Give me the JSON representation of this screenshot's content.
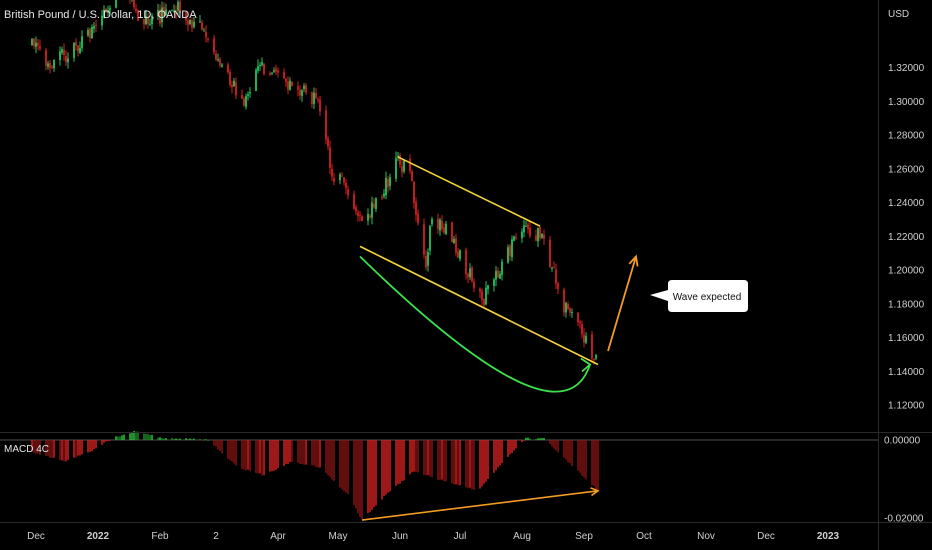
{
  "title": "British Pound / U.S. Dollar, 1D, OANDA",
  "currency": "USD",
  "callout": "Wave expected",
  "colors": {
    "background": "#000000",
    "up": "#22c55e",
    "down": "#d61f1f",
    "channel": "#f5d33a",
    "arc": "#3be14a",
    "arrow": "#f39c22",
    "axis_text": "#d0d0d0",
    "separator": "#2a2a2a"
  },
  "chart_data": [
    {
      "type": "candlestick",
      "title": "British Pound / U.S. Dollar, 1D, OANDA",
      "ylabel": "USD",
      "ylim": [
        1.104,
        1.36
      ],
      "y_ticks": [
        "1.32000",
        "1.30000",
        "1.28000",
        "1.26000",
        "1.24000",
        "1.22000",
        "1.20000",
        "1.18000",
        "1.16000",
        "1.14000",
        "1.12000"
      ],
      "x_ticks": [
        "Dec",
        "2022",
        "Feb",
        "2",
        "Apr",
        "May",
        "Jun",
        "Jul",
        "Aug",
        "Sep",
        "Oct",
        "Nov",
        "Dec",
        "2023"
      ],
      "trend": [
        {
          "date": "2021-11-29",
          "close": 1.333
        },
        {
          "date": "2021-12-08",
          "close": 1.322
        },
        {
          "date": "2021-12-20",
          "close": 1.331
        },
        {
          "date": "2022-01-05",
          "close": 1.352
        },
        {
          "date": "2022-01-13",
          "close": 1.372
        },
        {
          "date": "2022-01-24",
          "close": 1.345
        },
        {
          "date": "2022-02-10",
          "close": 1.356
        },
        {
          "date": "2022-02-24",
          "close": 1.34
        },
        {
          "date": "2022-03-08",
          "close": 1.31
        },
        {
          "date": "2022-03-16",
          "close": 1.3
        },
        {
          "date": "2022-03-22",
          "close": 1.322
        },
        {
          "date": "2022-04-07",
          "close": 1.308
        },
        {
          "date": "2022-04-21",
          "close": 1.302
        },
        {
          "date": "2022-04-28",
          "close": 1.256
        },
        {
          "date": "2022-05-05",
          "close": 1.252
        },
        {
          "date": "2022-05-12",
          "close": 1.228
        },
        {
          "date": "2022-05-19",
          "close": 1.238
        },
        {
          "date": "2022-05-31",
          "close": 1.264
        },
        {
          "date": "2022-06-06",
          "close": 1.257
        },
        {
          "date": "2022-06-14",
          "close": 1.2
        },
        {
          "date": "2022-06-16",
          "close": 1.23
        },
        {
          "date": "2022-06-23",
          "close": 1.226
        },
        {
          "date": "2022-07-01",
          "close": 1.208
        },
        {
          "date": "2022-07-13",
          "close": 1.184
        },
        {
          "date": "2022-07-28",
          "close": 1.216
        },
        {
          "date": "2022-08-02",
          "close": 1.227
        },
        {
          "date": "2022-08-10",
          "close": 1.22
        },
        {
          "date": "2022-08-12",
          "close": 1.215
        },
        {
          "date": "2022-08-22",
          "close": 1.178
        },
        {
          "date": "2022-08-31",
          "close": 1.163
        },
        {
          "date": "2022-09-07",
          "close": 1.148
        }
      ],
      "channel": {
        "upper": [
          {
            "date": "2022-05-31",
            "price": 1.267
          },
          {
            "date": "2022-08-10",
            "price": 1.226
          }
        ],
        "lower": [
          {
            "date": "2022-05-12",
            "price": 1.214
          },
          {
            "date": "2022-09-08",
            "price": 1.144
          }
        ]
      },
      "arc": {
        "from": {
          "date": "2022-05-12",
          "price": 1.208
        },
        "to": {
          "date": "2022-09-04",
          "price": 1.144
        },
        "bottom": {
          "date": "2022-07-30",
          "price": 1.134
        }
      },
      "arrow": {
        "from": {
          "date": "2022-09-13",
          "price": 1.152
        },
        "to": {
          "date": "2022-09-27",
          "price": 1.208
        }
      }
    },
    {
      "type": "histogram",
      "title": "MACD 4C",
      "ylim": [
        -0.021,
        0.0018
      ],
      "y_ticks": [
        "0.00000",
        "-0.02000"
      ],
      "values": [
        {
          "date": "2021-11-29",
          "value": -0.003
        },
        {
          "date": "2021-12-15",
          "value": -0.0055
        },
        {
          "date": "2021-12-28",
          "value": -0.003
        },
        {
          "date": "2022-01-08",
          "value": 0.0005
        },
        {
          "date": "2022-01-20",
          "value": 0.0023
        },
        {
          "date": "2022-02-02",
          "value": 0.0004
        },
        {
          "date": "2022-02-15",
          "value": 0.0003
        },
        {
          "date": "2022-02-25",
          "value": 0.0
        },
        {
          "date": "2022-03-12",
          "value": -0.007
        },
        {
          "date": "2022-03-25",
          "value": -0.009
        },
        {
          "date": "2022-04-08",
          "value": -0.0055
        },
        {
          "date": "2022-04-22",
          "value": -0.007
        },
        {
          "date": "2022-05-06",
          "value": -0.014
        },
        {
          "date": "2022-05-13",
          "value": -0.0205
        },
        {
          "date": "2022-05-25",
          "value": -0.014
        },
        {
          "date": "2022-06-08",
          "value": -0.008
        },
        {
          "date": "2022-06-20",
          "value": -0.01
        },
        {
          "date": "2022-07-10",
          "value": -0.013
        },
        {
          "date": "2022-07-22",
          "value": -0.006
        },
        {
          "date": "2022-08-03",
          "value": 0.0005
        },
        {
          "date": "2022-08-12",
          "value": 0.0004
        },
        {
          "date": "2022-08-25",
          "value": -0.006
        },
        {
          "date": "2022-09-08",
          "value": -0.013
        }
      ],
      "divergence": [
        {
          "date": "2022-05-13",
          "value": -0.0205
        },
        {
          "date": "2022-09-08",
          "value": -0.013
        }
      ]
    }
  ]
}
